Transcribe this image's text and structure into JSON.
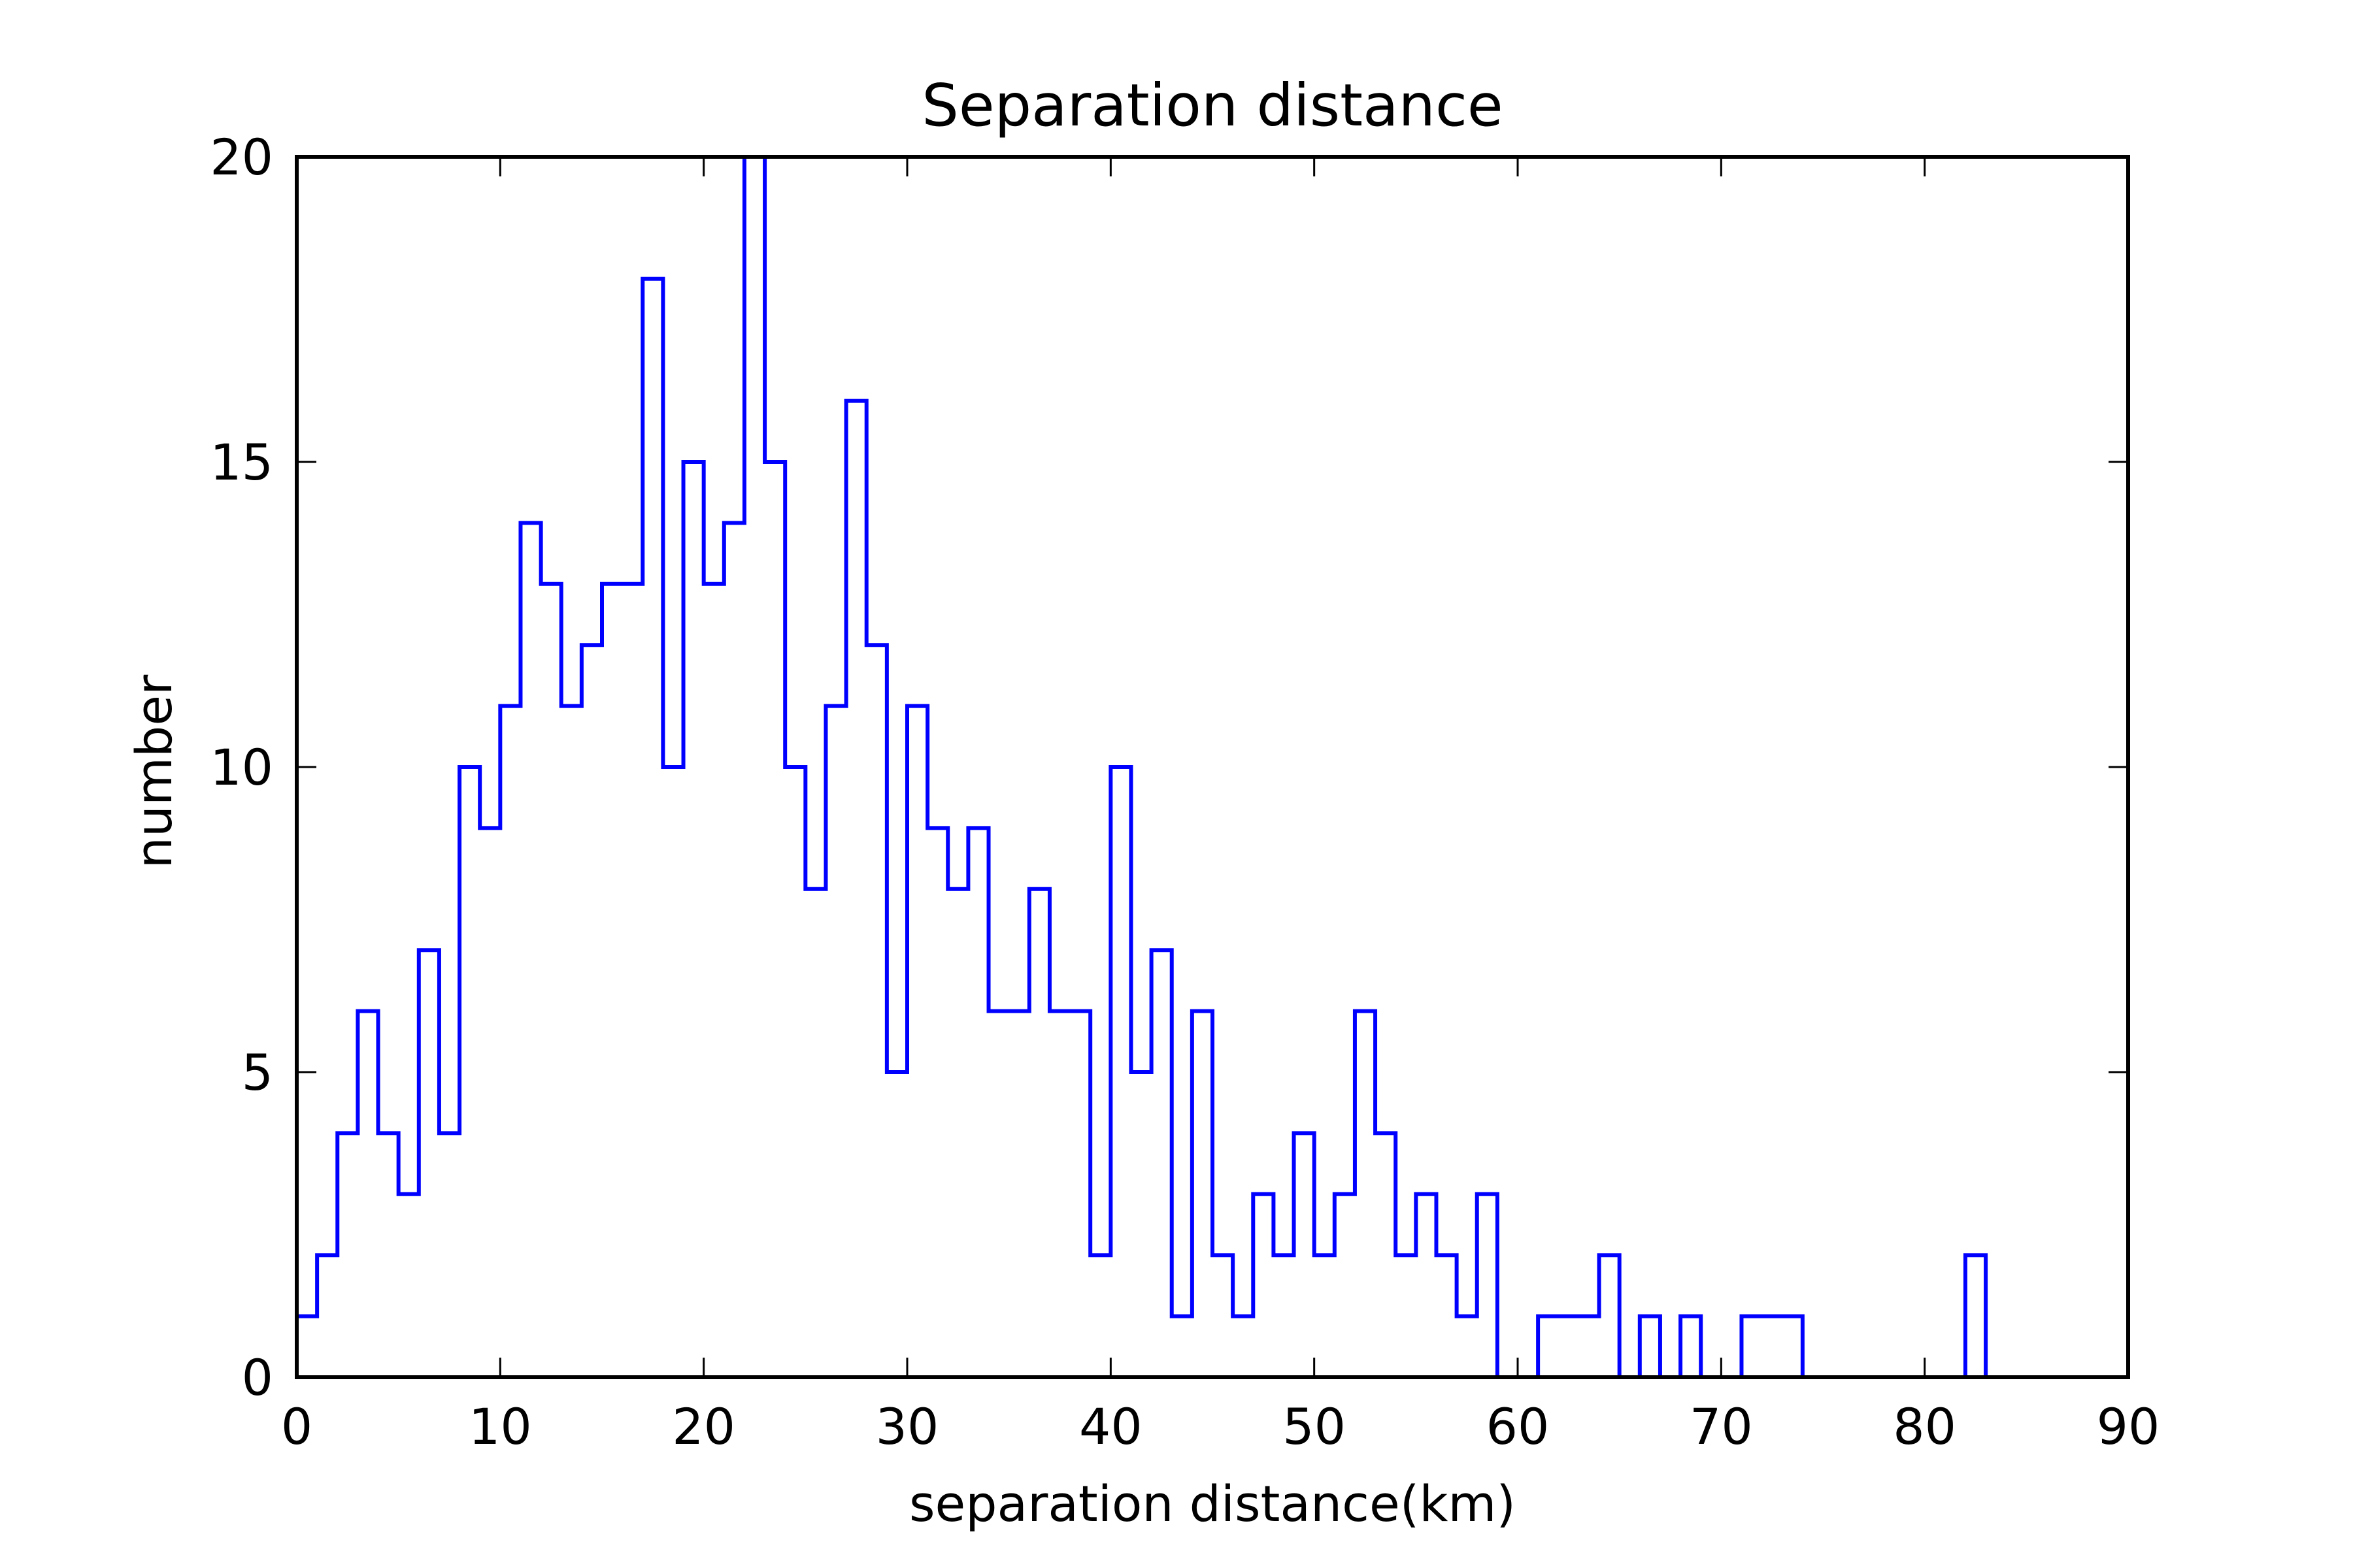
{
  "chart_data": {
    "type": "histogram",
    "title": "Separation distance",
    "xlabel": "separation distance(km)",
    "ylabel": "number",
    "xlim": [
      0,
      90
    ],
    "ylim": [
      0,
      20
    ],
    "xticks": [
      0,
      10,
      20,
      30,
      40,
      50,
      60,
      70,
      80,
      90
    ],
    "yticks": [
      0,
      5,
      10,
      15,
      20
    ],
    "bin_width": 1,
    "bin_start": 0,
    "counts": [
      1,
      2,
      4,
      6,
      4,
      3,
      7,
      4,
      10,
      9,
      11,
      14,
      13,
      11,
      12,
      13,
      13,
      18,
      10,
      15,
      13,
      14,
      20,
      15,
      10,
      8,
      11,
      16,
      12,
      5,
      11,
      9,
      8,
      9,
      6,
      6,
      8,
      6,
      6,
      2,
      10,
      5,
      7,
      1,
      6,
      2,
      1,
      3,
      2,
      4,
      2,
      3,
      6,
      4,
      2,
      3,
      2,
      1,
      3,
      0,
      0,
      1,
      1,
      1,
      2,
      0,
      1,
      0,
      1,
      0,
      0,
      1,
      1,
      1,
      0,
      0,
      0,
      0,
      0,
      0,
      0,
      0,
      2
    ],
    "line_color": "#0000ff",
    "grid": false
  }
}
